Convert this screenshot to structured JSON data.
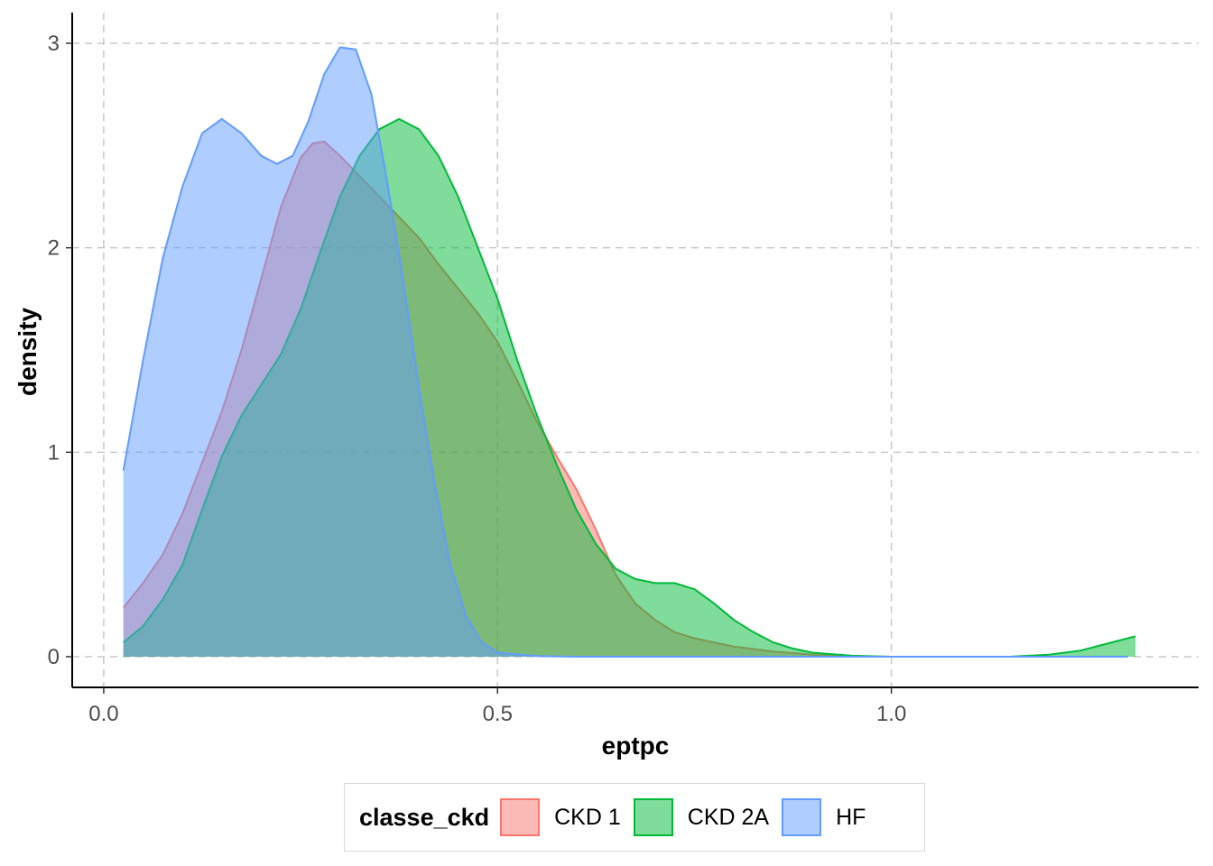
{
  "chart_data": {
    "type": "area",
    "title": "",
    "xlabel": "eptpc",
    "ylabel": "density",
    "xlim": [
      -0.04,
      1.39
    ],
    "ylim": [
      -0.15,
      3.15
    ],
    "x_ticks": [
      0.0,
      0.5,
      1.0
    ],
    "x_tick_labels": [
      "0.0",
      "0.5",
      "1.0"
    ],
    "y_ticks": [
      0,
      1,
      2,
      3
    ],
    "y_tick_labels": [
      "0",
      "1",
      "2",
      "3"
    ],
    "grid": "dashed major",
    "legend": {
      "title": "classe_ckd",
      "position": "bottom"
    },
    "series": [
      {
        "name": "CKD 1",
        "color": "#F8766D",
        "points": [
          [
            0.025,
            0.24
          ],
          [
            0.05,
            0.36
          ],
          [
            0.075,
            0.5
          ],
          [
            0.1,
            0.7
          ],
          [
            0.125,
            0.95
          ],
          [
            0.15,
            1.2
          ],
          [
            0.175,
            1.5
          ],
          [
            0.2,
            1.85
          ],
          [
            0.225,
            2.2
          ],
          [
            0.25,
            2.44
          ],
          [
            0.265,
            2.51
          ],
          [
            0.28,
            2.52
          ],
          [
            0.3,
            2.45
          ],
          [
            0.325,
            2.35
          ],
          [
            0.35,
            2.25
          ],
          [
            0.375,
            2.15
          ],
          [
            0.4,
            2.05
          ],
          [
            0.425,
            1.92
          ],
          [
            0.45,
            1.8
          ],
          [
            0.475,
            1.68
          ],
          [
            0.5,
            1.54
          ],
          [
            0.525,
            1.35
          ],
          [
            0.55,
            1.15
          ],
          [
            0.575,
            0.98
          ],
          [
            0.6,
            0.82
          ],
          [
            0.625,
            0.62
          ],
          [
            0.65,
            0.4
          ],
          [
            0.675,
            0.26
          ],
          [
            0.7,
            0.18
          ],
          [
            0.725,
            0.12
          ],
          [
            0.75,
            0.09
          ],
          [
            0.8,
            0.05
          ],
          [
            0.85,
            0.025
          ],
          [
            0.9,
            0.01
          ],
          [
            0.95,
            0.003
          ],
          [
            1.0,
            0.0
          ],
          [
            1.3,
            0.0
          ]
        ]
      },
      {
        "name": "CKD 2A",
        "color": "#00BA38",
        "points": [
          [
            0.025,
            0.07
          ],
          [
            0.05,
            0.15
          ],
          [
            0.075,
            0.28
          ],
          [
            0.1,
            0.45
          ],
          [
            0.125,
            0.72
          ],
          [
            0.15,
            0.98
          ],
          [
            0.175,
            1.18
          ],
          [
            0.2,
            1.33
          ],
          [
            0.225,
            1.48
          ],
          [
            0.25,
            1.7
          ],
          [
            0.275,
            1.98
          ],
          [
            0.3,
            2.25
          ],
          [
            0.325,
            2.45
          ],
          [
            0.35,
            2.58
          ],
          [
            0.375,
            2.63
          ],
          [
            0.4,
            2.58
          ],
          [
            0.425,
            2.45
          ],
          [
            0.45,
            2.25
          ],
          [
            0.475,
            2.0
          ],
          [
            0.5,
            1.75
          ],
          [
            0.525,
            1.45
          ],
          [
            0.55,
            1.18
          ],
          [
            0.575,
            0.94
          ],
          [
            0.6,
            0.72
          ],
          [
            0.625,
            0.55
          ],
          [
            0.65,
            0.43
          ],
          [
            0.675,
            0.38
          ],
          [
            0.7,
            0.36
          ],
          [
            0.725,
            0.36
          ],
          [
            0.75,
            0.33
          ],
          [
            0.775,
            0.26
          ],
          [
            0.8,
            0.18
          ],
          [
            0.825,
            0.12
          ],
          [
            0.85,
            0.07
          ],
          [
            0.875,
            0.04
          ],
          [
            0.9,
            0.02
          ],
          [
            0.95,
            0.005
          ],
          [
            1.0,
            0.0
          ],
          [
            1.15,
            0.0
          ],
          [
            1.2,
            0.01
          ],
          [
            1.24,
            0.03
          ],
          [
            1.28,
            0.07
          ],
          [
            1.31,
            0.1
          ]
        ]
      },
      {
        "name": "HF",
        "color": "#619CFF",
        "points": [
          [
            0.025,
            0.91
          ],
          [
            0.05,
            1.45
          ],
          [
            0.075,
            1.95
          ],
          [
            0.1,
            2.3
          ],
          [
            0.125,
            2.56
          ],
          [
            0.15,
            2.63
          ],
          [
            0.175,
            2.56
          ],
          [
            0.2,
            2.45
          ],
          [
            0.22,
            2.41
          ],
          [
            0.24,
            2.45
          ],
          [
            0.26,
            2.62
          ],
          [
            0.28,
            2.85
          ],
          [
            0.3,
            2.98
          ],
          [
            0.32,
            2.97
          ],
          [
            0.34,
            2.75
          ],
          [
            0.36,
            2.32
          ],
          [
            0.38,
            1.85
          ],
          [
            0.4,
            1.32
          ],
          [
            0.42,
            0.85
          ],
          [
            0.44,
            0.45
          ],
          [
            0.46,
            0.2
          ],
          [
            0.48,
            0.07
          ],
          [
            0.5,
            0.02
          ],
          [
            0.55,
            0.003
          ],
          [
            0.6,
            0.0
          ],
          [
            1.3,
            0.0
          ]
        ]
      }
    ]
  }
}
